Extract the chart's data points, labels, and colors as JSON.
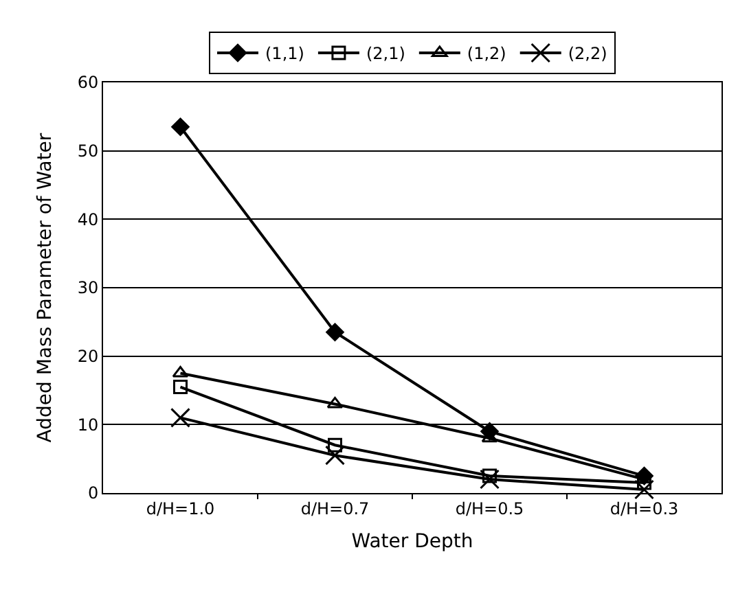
{
  "chart_data": {
    "type": "line",
    "xlabel": "Water Depth",
    "ylabel": "Added Mass Parameter of Water",
    "categories": [
      "d/H=1.0",
      "d/H=0.7",
      "d/H=0.5",
      "d/H=0.3"
    ],
    "series": [
      {
        "name": "(1,1)",
        "color": "#000000",
        "marker": "diamond",
        "values": [
          53.5,
          23.5,
          9,
          2.5
        ]
      },
      {
        "name": "(2,1)",
        "color": "#000000",
        "marker": "square",
        "values": [
          15.5,
          7,
          2.5,
          1.5
        ]
      },
      {
        "name": "(1,2)",
        "color": "#000000",
        "marker": "triangle",
        "values": [
          17.5,
          13,
          8,
          2
        ]
      },
      {
        "name": "(2,2)",
        "color": "#000000",
        "marker": "cross",
        "values": [
          11,
          5.5,
          2,
          0.5
        ]
      }
    ],
    "ylim": [
      0,
      60
    ],
    "yticks": [
      0,
      10,
      20,
      30,
      40,
      50,
      60
    ],
    "grid": "y",
    "legend": "top",
    "line_style": "solid"
  }
}
